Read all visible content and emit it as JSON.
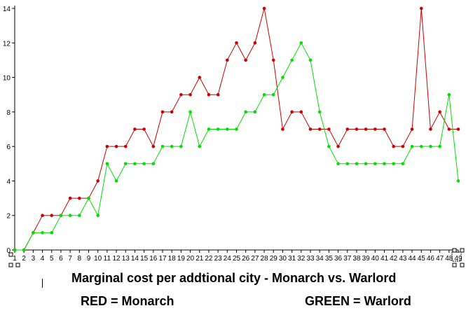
{
  "chart_data": {
    "type": "line",
    "title": "Marginal cost per addtional city - Monarch vs. Warlord",
    "xlabel": "",
    "ylabel": "",
    "x": [
      1,
      2,
      3,
      4,
      5,
      6,
      7,
      8,
      9,
      10,
      11,
      12,
      13,
      14,
      15,
      16,
      17,
      18,
      19,
      20,
      21,
      22,
      23,
      24,
      25,
      26,
      27,
      28,
      29,
      30,
      31,
      32,
      33,
      34,
      35,
      36,
      37,
      38,
      39,
      40,
      41,
      42,
      43,
      44,
      45,
      46,
      47,
      48,
      49
    ],
    "xlim": [
      1,
      49
    ],
    "ylim": [
      0,
      14
    ],
    "yticks": [
      0,
      2,
      4,
      6,
      8,
      10,
      12,
      14
    ],
    "grid": false,
    "series": [
      {
        "key": "monarch",
        "color": "#cc0000",
        "values": [
          0,
          0,
          1,
          2,
          2,
          2,
          3,
          3,
          3,
          4,
          6,
          6,
          6,
          7,
          7,
          6,
          8,
          8,
          9,
          9,
          10,
          9,
          9,
          11,
          12,
          11,
          12,
          14,
          11,
          7,
          8,
          8,
          7,
          7,
          7,
          6,
          7,
          7,
          7,
          7,
          7,
          6,
          6,
          7,
          14,
          7,
          8,
          7,
          7
        ]
      },
      {
        "key": "warlord",
        "color": "#00e000",
        "values": [
          0,
          0,
          1,
          1,
          1,
          2,
          2,
          2,
          3,
          2,
          5,
          4,
          5,
          5,
          5,
          5,
          6,
          6,
          6,
          8,
          6,
          7,
          7,
          7,
          7,
          8,
          8,
          9,
          9,
          10,
          11,
          12,
          11,
          8,
          6,
          5,
          5,
          5,
          5,
          5,
          5,
          5,
          5,
          6,
          6,
          6,
          6,
          9,
          4
        ]
      }
    ],
    "legend": {
      "red": "RED = Monarch",
      "green": "GREEN = Warlord"
    }
  }
}
